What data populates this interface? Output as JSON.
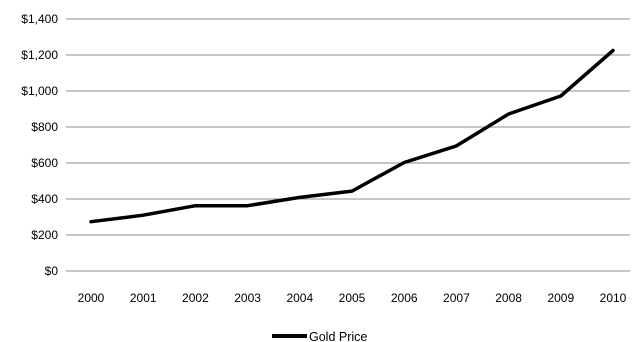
{
  "chart_data": {
    "type": "line",
    "title": "",
    "xlabel": "",
    "ylabel": "",
    "categories": [
      "2000",
      "2001",
      "2002",
      "2003",
      "2004",
      "2005",
      "2006",
      "2007",
      "2008",
      "2009",
      "2010"
    ],
    "series": [
      {
        "name": "Gold Price",
        "color": "#000000",
        "values": [
          274,
          310,
          363,
          363,
          409,
          444,
          603,
          695,
          872,
          972,
          1225
        ]
      }
    ],
    "ylim": [
      0,
      1400
    ],
    "yticks": [
      0,
      200,
      400,
      600,
      800,
      1000,
      1200,
      1400
    ],
    "ytick_labels": [
      "$0",
      "$200",
      "$400",
      "$600",
      "$800",
      "$1,000",
      "$1,200",
      "$1,400"
    ],
    "grid": true,
    "legend_position": "bottom"
  }
}
